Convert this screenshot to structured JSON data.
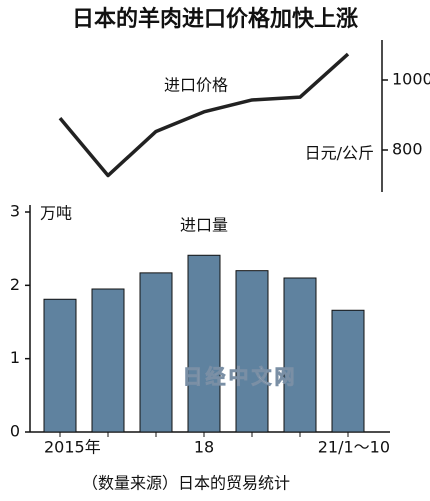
{
  "chart_data": [
    {
      "type": "line",
      "title": "日本的羊肉进口价格加快上涨",
      "series_label": "进口价格",
      "unit": "日元/公斤",
      "values": [
        891,
        727,
        853,
        909,
        943,
        951,
        1074
      ],
      "color": "#222222",
      "ylim": [
        700,
        1100
      ],
      "yticks": [
        800,
        1000
      ]
    },
    {
      "type": "bar",
      "series_label": "进口量",
      "unit": "万吨",
      "categories": [
        "2015年",
        null,
        null,
        "18",
        null,
        null,
        "21/1～10"
      ],
      "values": [
        1.81,
        1.95,
        2.17,
        2.41,
        2.2,
        2.1,
        1.66
      ],
      "color": "#5f829f",
      "ylim": [
        0,
        3
      ],
      "yticks": [
        0,
        1,
        2,
        3
      ]
    }
  ],
  "source": "（数量来源）日本的贸易统计",
  "watermark": "日经中文网"
}
